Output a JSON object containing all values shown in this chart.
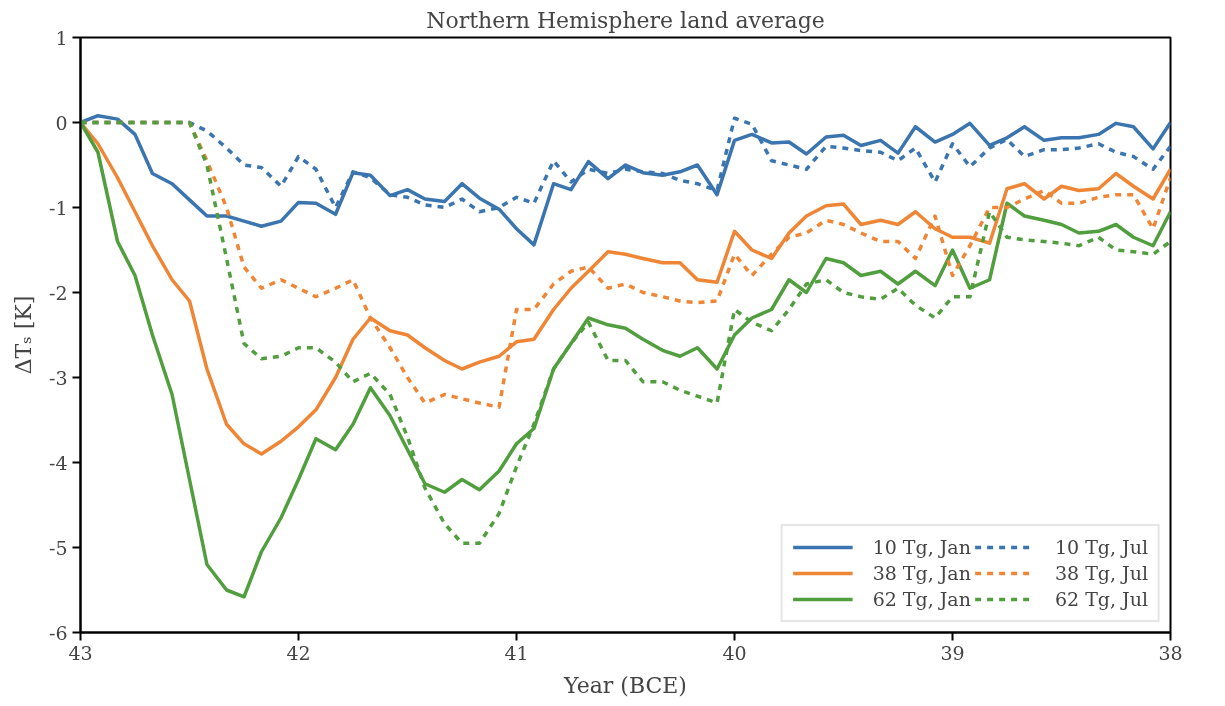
{
  "chart_data": {
    "type": "line",
    "title": "Northern Hemisphere land average",
    "xlabel": "Year (BCE)",
    "ylabel": "ΔTₛ [K]",
    "x": [
      43,
      42.92,
      42.83,
      42.75,
      42.67,
      42.58,
      42.5,
      42.42,
      42.33,
      42.25,
      42.17,
      42.08,
      42,
      41.92,
      41.83,
      41.75,
      41.67,
      41.58,
      41.5,
      41.42,
      41.33,
      41.25,
      41.17,
      41.08,
      41,
      40.92,
      40.83,
      40.75,
      40.67,
      40.58,
      40.5,
      40.42,
      40.33,
      40.25,
      40.17,
      40.08,
      40,
      39.92,
      39.83,
      39.75,
      39.67,
      39.58,
      39.5,
      39.42,
      39.33,
      39.25,
      39.17,
      39.08,
      39,
      38.92,
      38.83,
      38.75,
      38.67,
      38.58,
      38.5,
      38.42,
      38.33,
      38.25,
      38.17,
      38.08,
      38
    ],
    "xlim": [
      43,
      38
    ],
    "xticks": [
      43,
      42,
      41,
      40,
      39,
      38
    ],
    "ylim": [
      -6,
      1
    ],
    "yticks": [
      -6,
      -5,
      -4,
      -3,
      -2,
      -1,
      0,
      1
    ],
    "grid": false,
    "legend": "bottom right",
    "marker": "none",
    "series": [
      {
        "name": "10 Tg, Jan",
        "color": "#3b75af",
        "line_style": "solid",
        "values": [
          0,
          0.08,
          0.04,
          -0.14,
          -0.6,
          -0.72,
          -0.91,
          -1.1,
          -1.1,
          -1.16,
          -1.22,
          -1.16,
          -0.94,
          -0.95,
          -1.08,
          -0.59,
          -0.62,
          -0.86,
          -0.79,
          -0.9,
          -0.93,
          -0.72,
          -0.89,
          -1.02,
          -1.25,
          -1.44,
          -0.72,
          -0.79,
          -0.46,
          -0.66,
          -0.5,
          -0.59,
          -0.62,
          -0.58,
          -0.5,
          -0.85,
          -0.21,
          -0.14,
          -0.24,
          -0.23,
          -0.37,
          -0.17,
          -0.15,
          -0.27,
          -0.21,
          -0.36,
          -0.05,
          -0.23,
          -0.14,
          -0.01,
          -0.27,
          -0.18,
          -0.05,
          -0.21,
          -0.18,
          -0.18,
          -0.14,
          -0.01,
          -0.05,
          -0.31,
          0
        ]
      },
      {
        "name": "38 Tg, Jan",
        "color": "#ef8636",
        "line_style": "solid",
        "values": [
          0,
          -0.25,
          -0.65,
          -1.05,
          -1.45,
          -1.85,
          -2.1,
          -2.9,
          -3.55,
          -3.78,
          -3.9,
          -3.75,
          -3.58,
          -3.38,
          -3.0,
          -2.55,
          -2.3,
          -2.45,
          -2.5,
          -2.65,
          -2.8,
          -2.9,
          -2.82,
          -2.75,
          -2.58,
          -2.55,
          -2.2,
          -1.95,
          -1.75,
          -1.52,
          -1.55,
          -1.6,
          -1.65,
          -1.65,
          -1.85,
          -1.88,
          -1.28,
          -1.5,
          -1.6,
          -1.3,
          -1.1,
          -0.98,
          -0.96,
          -1.2,
          -1.15,
          -1.2,
          -1.05,
          -1.25,
          -1.35,
          -1.35,
          -1.42,
          -0.78,
          -0.72,
          -0.9,
          -0.75,
          -0.8,
          -0.78,
          -0.6,
          -0.75,
          -0.9,
          -0.55
        ]
      },
      {
        "name": "62 Tg, Jan",
        "color": "#519e3e",
        "line_style": "solid",
        "values": [
          0,
          -0.35,
          -1.4,
          -1.8,
          -2.5,
          -3.2,
          -4.2,
          -5.2,
          -5.5,
          -5.58,
          -5.05,
          -4.65,
          -4.2,
          -3.72,
          -3.85,
          -3.55,
          -3.12,
          -3.45,
          -3.85,
          -4.25,
          -4.35,
          -4.2,
          -4.32,
          -4.1,
          -3.78,
          -3.6,
          -2.9,
          -2.6,
          -2.3,
          -2.38,
          -2.42,
          -2.55,
          -2.68,
          -2.75,
          -2.65,
          -2.9,
          -2.5,
          -2.3,
          -2.2,
          -1.85,
          -2.0,
          -1.6,
          -1.65,
          -1.8,
          -1.75,
          -1.9,
          -1.75,
          -1.92,
          -1.5,
          -1.95,
          -1.85,
          -0.95,
          -1.1,
          -1.15,
          -1.2,
          -1.3,
          -1.28,
          -1.2,
          -1.35,
          -1.45,
          -1.05
        ]
      },
      {
        "name": "10 Tg, Jul",
        "color": "#3b75af",
        "line_style": "dashed",
        "values": [
          0,
          0,
          0,
          0,
          0,
          0,
          0,
          -0.1,
          -0.3,
          -0.5,
          -0.53,
          -0.75,
          -0.4,
          -0.55,
          -1.0,
          -0.58,
          -0.65,
          -0.85,
          -0.88,
          -0.97,
          -1.0,
          -0.9,
          -1.05,
          -1.0,
          -0.88,
          -0.95,
          -0.45,
          -0.7,
          -0.55,
          -0.6,
          -0.55,
          -0.58,
          -0.6,
          -0.68,
          -0.72,
          -0.8,
          0.05,
          -0.02,
          -0.45,
          -0.5,
          -0.55,
          -0.28,
          -0.3,
          -0.33,
          -0.35,
          -0.45,
          -0.3,
          -0.7,
          -0.25,
          -0.52,
          -0.3,
          -0.2,
          -0.4,
          -0.32,
          -0.32,
          -0.3,
          -0.25,
          -0.35,
          -0.4,
          -0.55,
          -0.28
        ]
      },
      {
        "name": "38 Tg, Jul",
        "color": "#ef8636",
        "line_style": "dashed",
        "values": [
          0,
          0,
          0,
          0,
          0,
          0,
          0,
          -0.45,
          -1.0,
          -1.7,
          -1.95,
          -1.85,
          -1.95,
          -2.05,
          -1.95,
          -1.85,
          -2.3,
          -2.65,
          -3.0,
          -3.3,
          -3.2,
          -3.25,
          -3.3,
          -3.35,
          -2.2,
          -2.2,
          -1.9,
          -1.75,
          -1.7,
          -1.95,
          -1.9,
          -2.0,
          -2.05,
          -2.1,
          -2.12,
          -2.1,
          -1.55,
          -1.8,
          -1.55,
          -1.35,
          -1.3,
          -1.15,
          -1.2,
          -1.3,
          -1.4,
          -1.4,
          -1.6,
          -1.1,
          -1.8,
          -1.45,
          -1.0,
          -1.0,
          -0.9,
          -0.8,
          -0.95,
          -0.95,
          -0.88,
          -0.85,
          -0.85,
          -1.25,
          -0.65
        ]
      },
      {
        "name": "62 Tg, Jul",
        "color": "#519e3e",
        "line_style": "dashed",
        "values": [
          0,
          0,
          0,
          0,
          0,
          0,
          0,
          -0.5,
          -1.6,
          -2.6,
          -2.78,
          -2.75,
          -2.65,
          -2.65,
          -2.82,
          -3.05,
          -2.95,
          -3.2,
          -3.7,
          -4.3,
          -4.72,
          -4.95,
          -4.95,
          -4.6,
          -4.05,
          -3.55,
          -2.9,
          -2.6,
          -2.35,
          -2.8,
          -2.8,
          -3.05,
          -3.05,
          -3.15,
          -3.22,
          -3.3,
          -2.2,
          -2.35,
          -2.45,
          -2.2,
          -1.9,
          -1.85,
          -2.0,
          -2.05,
          -2.08,
          -1.95,
          -2.15,
          -2.3,
          -2.05,
          -2.05,
          -1.05,
          -1.35,
          -1.38,
          -1.4,
          -1.42,
          -1.45,
          -1.35,
          -1.5,
          -1.52,
          -1.55,
          -1.4
        ]
      }
    ]
  }
}
